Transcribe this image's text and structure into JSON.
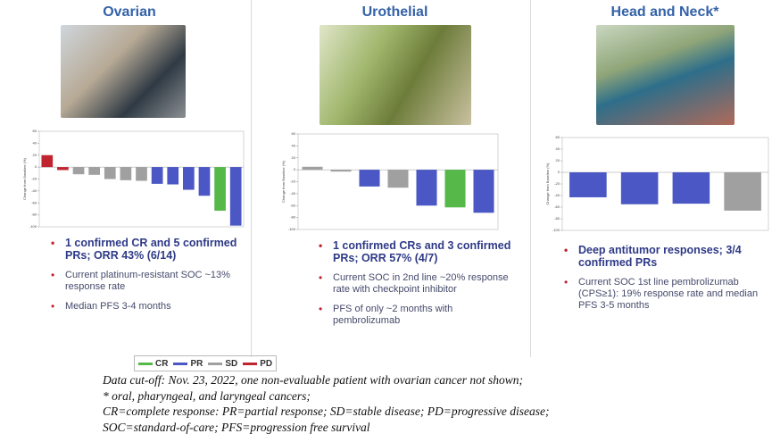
{
  "chart_data": [
    {
      "type": "bar",
      "title": "Ovarian",
      "ylabel": "Change from Baseline (%)",
      "values": [
        20,
        -5,
        -12,
        -13,
        -20,
        -22,
        -23,
        -28,
        -29,
        -38,
        -48,
        -73,
        -98
      ],
      "colors": [
        "#c0242f",
        "#c0242f",
        "#a0a0a0",
        "#a0a0a0",
        "#a0a0a0",
        "#a0a0a0",
        "#a0a0a0",
        "#4a57c4",
        "#4a57c4",
        "#4a57c4",
        "#4a57c4",
        "#55b848",
        "#4a57c4"
      ],
      "ylim": [
        -100,
        60
      ],
      "yticks": [
        60,
        40,
        20,
        0,
        -20,
        -40,
        -60,
        -80,
        -100
      ]
    },
    {
      "type": "bar",
      "title": "Urothelial",
      "ylabel": "Change from Baseline (%)",
      "values": [
        5,
        -3,
        -28,
        -30,
        -60,
        -63,
        -72
      ],
      "colors": [
        "#a0a0a0",
        "#a0a0a0",
        "#4a57c4",
        "#a0a0a0",
        "#4a57c4",
        "#55b848",
        "#4a57c4"
      ],
      "ylim": [
        -100,
        60
      ],
      "yticks": [
        60,
        40,
        20,
        0,
        -20,
        -40,
        -60,
        -80,
        -100
      ]
    },
    {
      "type": "bar",
      "title": "Head and Neck*",
      "ylabel": "Change from Baseline (%)",
      "values": [
        -43,
        -55,
        -54,
        -66
      ],
      "colors": [
        "#4a57c4",
        "#4a57c4",
        "#4a57c4",
        "#a0a0a0"
      ],
      "ylim": [
        -100,
        60
      ],
      "yticks": [
        60,
        40,
        20,
        0,
        -20,
        -40,
        -60,
        -80,
        -100
      ]
    }
  ],
  "panels": [
    {
      "bullets": [
        "1 confirmed CR and 5 confirmed PRs; ORR 43% (6/14)",
        "Current platinum-resistant SOC ~13% response rate",
        "Median PFS 3-4 months"
      ]
    },
    {
      "bullets": [
        "1 confirmed CRs and 3 confirmed PRs; ORR 57% (4/7)",
        "Current SOC in 2nd line ~20% response rate with checkpoint inhibitor",
        "PFS of only ~2 months with pembrolizumab"
      ]
    },
    {
      "bullets": [
        "Deep antitumor responses; 3/4 confirmed PRs",
        "Current SOC 1st line pembrolizumab (CPS≥1): 19% response rate and median PFS 3-5 months"
      ]
    }
  ],
  "legend": [
    {
      "name": "CR",
      "color": "#55b848"
    },
    {
      "name": "PR",
      "color": "#4a57c4"
    },
    {
      "name": "SD",
      "color": "#a0a0a0"
    },
    {
      "name": "PD",
      "color": "#c0242f"
    }
  ],
  "footnotes": [
    "Data cut-off: Nov. 23, 2022, one non-evaluable patient with ovarian cancer not shown;",
    "* oral, pharyngeal, and laryngeal cancers;",
    "CR=complete response: PR=partial response; SD=stable disease; PD=progressive disease;",
    "SOC=standard-of-care; PFS=progression free survival"
  ]
}
